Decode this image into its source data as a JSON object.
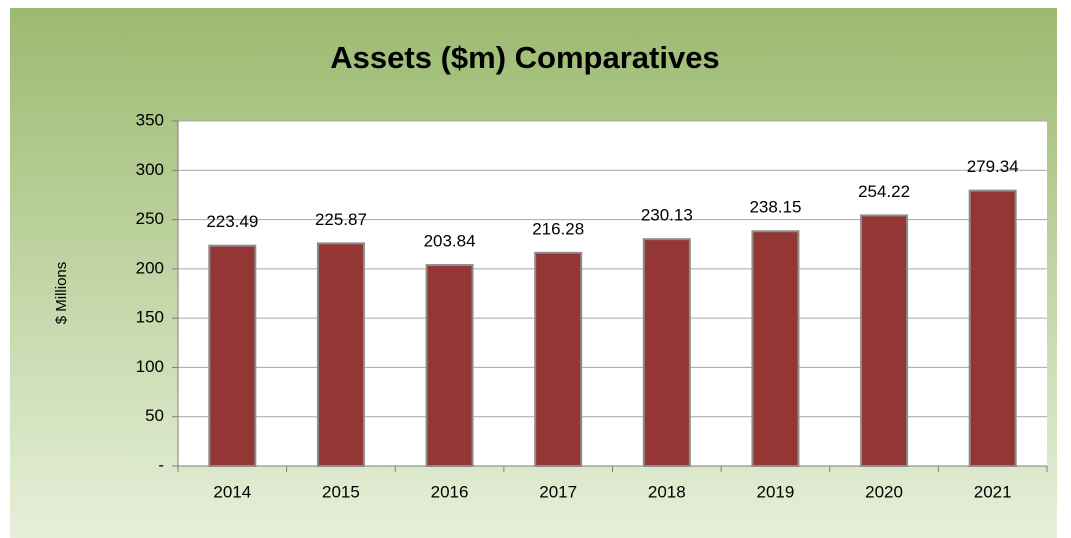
{
  "chart_data": {
    "type": "bar",
    "title": "Assets ($m) Comparatives",
    "y_label": "$ Millions",
    "categories": [
      "2014",
      "2015",
      "2016",
      "2017",
      "2018",
      "2019",
      "2020",
      "2021"
    ],
    "values": [
      223.49,
      225.87,
      203.84,
      216.28,
      230.13,
      238.15,
      254.22,
      279.34
    ],
    "color": "#943634",
    "ylim": [
      0,
      350
    ],
    "yticks": [
      {
        "value": 0,
        "label": "-"
      },
      50,
      100,
      150,
      200,
      250,
      300,
      350
    ],
    "grid": true
  }
}
